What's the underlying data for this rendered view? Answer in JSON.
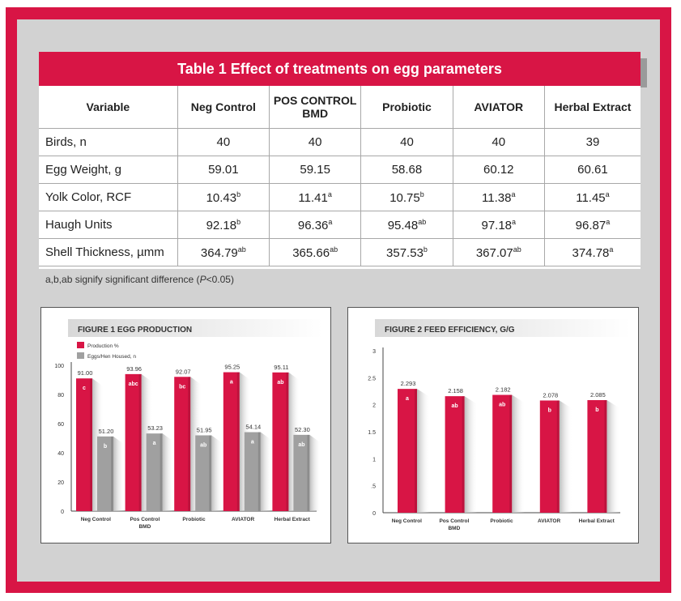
{
  "table": {
    "title": "Table 1 Effect of treatments on egg parameters",
    "headers": [
      "Variable",
      "Neg Control",
      "POS CONTROL BMD",
      "Probiotic",
      "AVIATOR",
      "Herbal Extract"
    ],
    "rows": [
      {
        "variable": "Birds, n",
        "cells": [
          {
            "v": "40",
            "s": ""
          },
          {
            "v": "40",
            "s": ""
          },
          {
            "v": "40",
            "s": ""
          },
          {
            "v": "40",
            "s": ""
          },
          {
            "v": "39",
            "s": ""
          }
        ]
      },
      {
        "variable": "Egg Weight, g",
        "cells": [
          {
            "v": "59.01",
            "s": ""
          },
          {
            "v": "59.15",
            "s": ""
          },
          {
            "v": "58.68",
            "s": ""
          },
          {
            "v": "60.12",
            "s": ""
          },
          {
            "v": "60.61",
            "s": ""
          }
        ]
      },
      {
        "variable": "Yolk Color, RCF",
        "cells": [
          {
            "v": "10.43",
            "s": "b"
          },
          {
            "v": "11.41",
            "s": "a"
          },
          {
            "v": "10.75",
            "s": "b"
          },
          {
            "v": "11.38",
            "s": "a"
          },
          {
            "v": "11.45",
            "s": "a"
          }
        ]
      },
      {
        "variable": "Haugh Units",
        "cells": [
          {
            "v": "92.18",
            "s": "b"
          },
          {
            "v": "96.36",
            "s": "a"
          },
          {
            "v": "95.48",
            "s": "ab"
          },
          {
            "v": "97.18",
            "s": "a"
          },
          {
            "v": "96.87",
            "s": "a"
          }
        ]
      },
      {
        "variable": "Shell Thickness, µmm",
        "cells": [
          {
            "v": "364.79",
            "s": "ab"
          },
          {
            "v": "365.66",
            "s": "ab"
          },
          {
            "v": "357.53",
            "s": "b"
          },
          {
            "v": "367.07",
            "s": "ab"
          },
          {
            "v": "374.78",
            "s": "a"
          }
        ]
      }
    ],
    "footnote": {
      "prefix": "a,b,ab signify significant difference (",
      "italic": "P",
      "suffix": "<0.05)"
    }
  },
  "colors": {
    "accent": "#d81545",
    "gray_bar": "#a0a0a0",
    "background": "#d2d2d2"
  },
  "chart_data": [
    {
      "type": "bar",
      "title": "FIGURE 1 EGG PRODUCTION",
      "categories": [
        "Neg Control",
        "Pos Control BMD",
        "Probiotic",
        "AVIATOR",
        "Herbal Extract"
      ],
      "category_lines": [
        [
          "Neg Control"
        ],
        [
          "Pos Control",
          "BMD"
        ],
        [
          "Probiotic"
        ],
        [
          "AVIATOR"
        ],
        [
          "Herbal Extract"
        ]
      ],
      "series": [
        {
          "name": "Production %",
          "color": "#d81545",
          "values": [
            91.0,
            93.96,
            92.07,
            95.25,
            95.11
          ],
          "value_labels": [
            "91.00",
            "93.96",
            "92.07",
            "95.25",
            "95.11"
          ],
          "letters": [
            "c",
            "abc",
            "bc",
            "a",
            "ab"
          ]
        },
        {
          "name": "Eggs/Hen Housed, n",
          "color": "#a0a0a0",
          "values": [
            51.2,
            53.23,
            51.95,
            54.14,
            52.3
          ],
          "value_labels": [
            "51.20",
            "53.23",
            "51.95",
            "54.14",
            "52.30"
          ],
          "letters": [
            "b",
            "a",
            "ab",
            "a",
            "ab"
          ]
        }
      ],
      "ylim": [
        0,
        100
      ],
      "yticks": [
        "0",
        "20",
        "40",
        "60",
        "80",
        "100"
      ],
      "ytick_values": [
        0,
        20,
        40,
        60,
        80,
        100
      ],
      "legend": "top-left"
    },
    {
      "type": "bar",
      "title": "FIGURE 2 FEED EFFICIENCY, G/G",
      "categories": [
        "Neg Control",
        "Pos Control BMD",
        "Probiotic",
        "AVIATOR",
        "Herbal Extract"
      ],
      "category_lines": [
        [
          "Neg Control"
        ],
        [
          "Pos Control",
          "BMD"
        ],
        [
          "Probiotic"
        ],
        [
          "AVIATOR"
        ],
        [
          "Herbal Extract"
        ]
      ],
      "series": [
        {
          "color": "#d81545",
          "values": [
            2.293,
            2.158,
            2.182,
            2.078,
            2.085
          ],
          "value_labels": [
            "2.293",
            "2.158",
            "2.182",
            "2.078",
            "2.085"
          ],
          "letters": [
            "a",
            "ab",
            "ab",
            "b",
            "b"
          ]
        }
      ],
      "ylim": [
        0,
        3
      ],
      "yticks": [
        "0",
        ".5",
        "1",
        "1.5",
        "2",
        "2.5",
        "3"
      ],
      "ytick_values": [
        0,
        0.5,
        1,
        1.5,
        2,
        2.5,
        3
      ]
    }
  ]
}
